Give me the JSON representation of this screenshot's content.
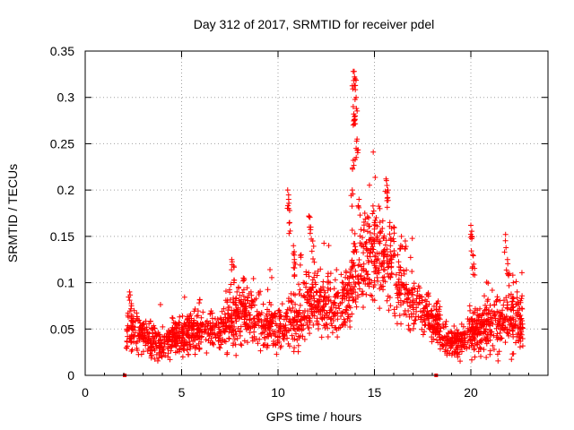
{
  "chart_data": {
    "type": "scatter",
    "title": "Day 312 of 2017, SRMTID for receiver pdel",
    "xlabel": "GPS time / hours",
    "ylabel": "SRMTID / TECUs",
    "xlim": [
      0,
      24
    ],
    "ylim": [
      0,
      0.35
    ],
    "xticks": [
      0,
      5,
      10,
      15,
      20
    ],
    "yticks": [
      0,
      0.05,
      0.1,
      0.15,
      0.2,
      0.25,
      0.3,
      0.35
    ],
    "xtick_labels": [
      "0",
      "5",
      "10",
      "15",
      "20"
    ],
    "ytick_labels": [
      "0",
      "0.05",
      "0.1",
      "0.15",
      "0.2",
      "0.25",
      "0.3",
      "0.35"
    ],
    "grid": true,
    "marker": "+",
    "color": "#ff0000",
    "series": [
      {
        "name": "SRMTID",
        "profile_x": [
          2.1,
          2.5,
          3.0,
          3.5,
          4.0,
          4.5,
          5.0,
          5.5,
          6.0,
          6.5,
          7.0,
          7.5,
          8.0,
          8.5,
          9.0,
          9.5,
          10.0,
          10.5,
          11.0,
          11.5,
          12.0,
          12.5,
          13.0,
          13.5,
          14.0,
          14.5,
          15.0,
          15.5,
          16.0,
          16.5,
          17.0,
          17.5,
          18.0,
          18.3,
          18.5,
          19.0,
          19.5,
          20.0,
          20.5,
          21.0,
          21.5,
          22.0,
          22.5,
          22.7
        ],
        "profile_median": [
          0.05,
          0.048,
          0.045,
          0.035,
          0.033,
          0.038,
          0.042,
          0.048,
          0.052,
          0.052,
          0.05,
          0.06,
          0.068,
          0.065,
          0.058,
          0.052,
          0.05,
          0.06,
          0.06,
          0.078,
          0.082,
          0.072,
          0.065,
          0.08,
          0.105,
          0.125,
          0.13,
          0.12,
          0.11,
          0.09,
          0.08,
          0.068,
          0.06,
          0.055,
          0.04,
          0.036,
          0.036,
          0.045,
          0.05,
          0.052,
          0.055,
          0.055,
          0.055,
          0.055
        ],
        "profile_spread": [
          0.018,
          0.015,
          0.013,
          0.012,
          0.012,
          0.013,
          0.014,
          0.015,
          0.015,
          0.016,
          0.016,
          0.022,
          0.022,
          0.02,
          0.018,
          0.017,
          0.018,
          0.022,
          0.022,
          0.022,
          0.022,
          0.022,
          0.022,
          0.025,
          0.03,
          0.032,
          0.032,
          0.03,
          0.028,
          0.025,
          0.022,
          0.018,
          0.018,
          0.016,
          0.012,
          0.011,
          0.011,
          0.016,
          0.018,
          0.018,
          0.02,
          0.02,
          0.02,
          0.02
        ],
        "spikes": [
          [
            2.3,
            0.09
          ],
          [
            2.4,
            0.075
          ],
          [
            7.6,
            0.125
          ],
          [
            7.7,
            0.118
          ],
          [
            8.2,
            0.105
          ],
          [
            8.6,
            0.09
          ],
          [
            10.5,
            0.2
          ],
          [
            10.55,
            0.19
          ],
          [
            10.6,
            0.165
          ],
          [
            10.8,
            0.14
          ],
          [
            10.85,
            0.125
          ],
          [
            10.9,
            0.12
          ],
          [
            11.2,
            0.13
          ],
          [
            11.6,
            0.172
          ],
          [
            11.7,
            0.16
          ],
          [
            11.8,
            0.145
          ],
          [
            12.6,
            0.11
          ],
          [
            12.7,
            0.1
          ],
          [
            13.9,
            0.328
          ],
          [
            13.95,
            0.328
          ],
          [
            14.0,
            0.32
          ],
          [
            14.05,
            0.3
          ],
          [
            13.9,
            0.29
          ],
          [
            14.0,
            0.28
          ],
          [
            13.95,
            0.275
          ],
          [
            14.1,
            0.255
          ],
          [
            14.05,
            0.245
          ],
          [
            13.9,
            0.232
          ],
          [
            13.85,
            0.2
          ],
          [
            14.2,
            0.19
          ],
          [
            14.5,
            0.175
          ],
          [
            14.7,
            0.17
          ],
          [
            15.0,
            0.165
          ],
          [
            15.6,
            0.212
          ],
          [
            15.65,
            0.205
          ],
          [
            15.7,
            0.2
          ],
          [
            15.8,
            0.165
          ],
          [
            16.0,
            0.16
          ],
          [
            16.4,
            0.15
          ],
          [
            16.6,
            0.145
          ],
          [
            20.0,
            0.162
          ],
          [
            20.05,
            0.15
          ],
          [
            20.1,
            0.13
          ],
          [
            20.15,
            0.12
          ],
          [
            21.8,
            0.152
          ],
          [
            21.9,
            0.125
          ],
          [
            22.0,
            0.11
          ],
          [
            22.2,
            0.1
          ],
          [
            22.4,
            0.09
          ]
        ],
        "zero_markers": [
          2.05,
          18.2
        ]
      }
    ]
  }
}
